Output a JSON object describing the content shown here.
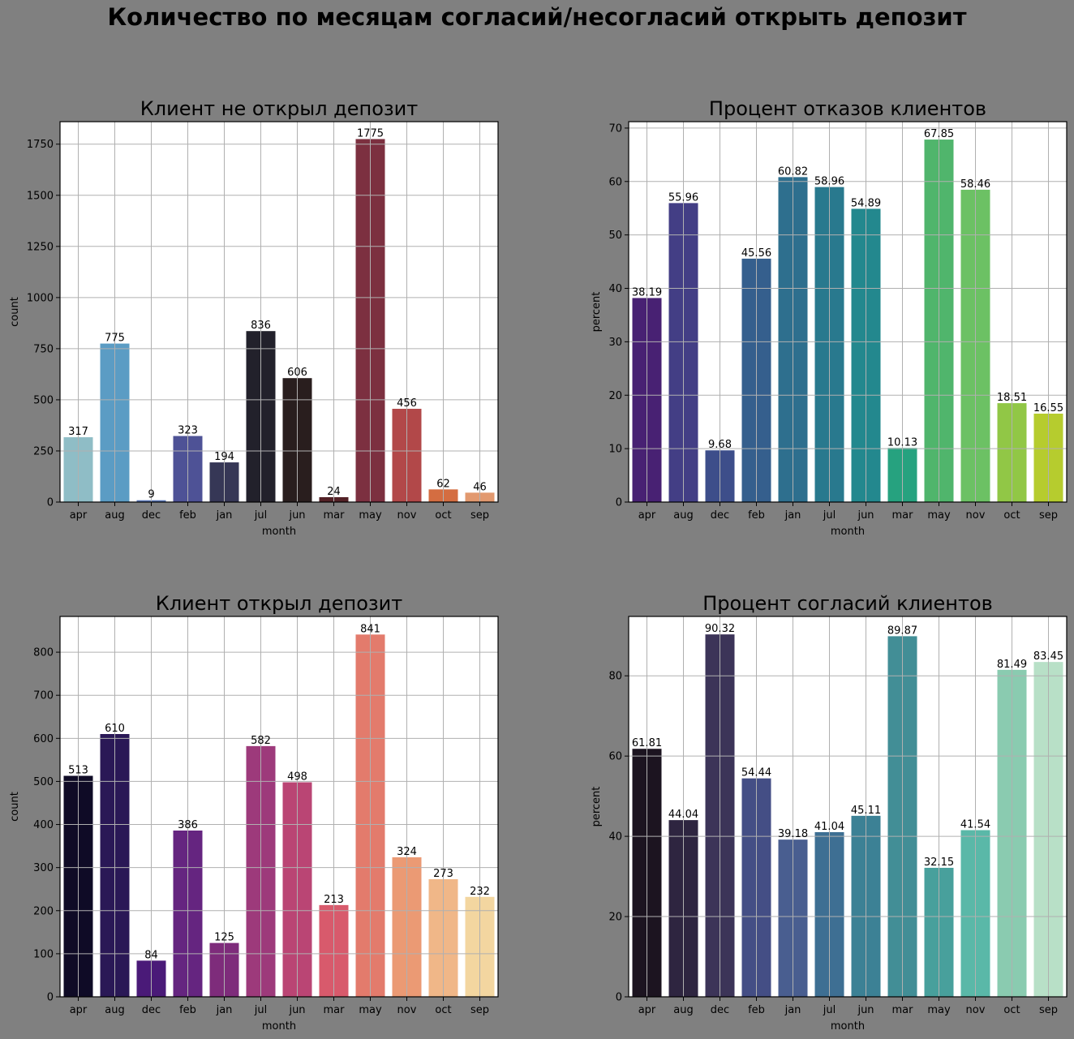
{
  "suptitle": "Количество по месяцам согласий/несогласий открыть депозит",
  "chart_data": [
    {
      "type": "bar",
      "title": "Клиент не открыл депозит",
      "xlabel": "month",
      "ylabel": "count",
      "ylim": [
        0,
        1860
      ],
      "yticks": [
        0,
        250,
        500,
        750,
        1000,
        1250,
        1500,
        1750
      ],
      "grid": true,
      "categories": [
        "apr",
        "aug",
        "dec",
        "feb",
        "jan",
        "jul",
        "jun",
        "mar",
        "may",
        "nov",
        "oct",
        "sep"
      ],
      "values": [
        317,
        775,
        9,
        323,
        194,
        836,
        606,
        24,
        1775,
        456,
        62,
        46
      ],
      "labels": [
        "317",
        "775",
        "9",
        "323",
        "194",
        "836",
        "606",
        "24",
        "1775",
        "456",
        "62",
        "46"
      ],
      "colors": [
        "#8fbdc6",
        "#5b9cc4",
        "#5a78b8",
        "#4e5296",
        "#363756",
        "#22212b",
        "#291e1e",
        "#532126",
        "#7c3040",
        "#b24849",
        "#d46d41",
        "#e2996f"
      ]
    },
    {
      "type": "bar",
      "title": "Процент отказов клиентов",
      "xlabel": "month",
      "ylabel": "percent",
      "ylim": [
        0,
        71.2
      ],
      "yticks": [
        0,
        10,
        20,
        30,
        40,
        50,
        60,
        70
      ],
      "grid": true,
      "categories": [
        "apr",
        "aug",
        "dec",
        "feb",
        "jan",
        "jul",
        "jun",
        "mar",
        "may",
        "nov",
        "oct",
        "sep"
      ],
      "values": [
        38.19,
        55.96,
        9.68,
        45.56,
        60.82,
        58.96,
        54.89,
        10.13,
        67.85,
        58.46,
        18.51,
        16.55
      ],
      "labels": [
        "38.19",
        "55.96",
        "9.68",
        "45.56",
        "60.82",
        "58.96",
        "54.89",
        "10.13",
        "67.85",
        "58.46",
        "18.51",
        "16.55"
      ],
      "colors": [
        "#482173",
        "#433e85",
        "#3d4e8a",
        "#355f8d",
        "#2e6f8e",
        "#29798e",
        "#23888e",
        "#26a27f",
        "#50b56c",
        "#6cc164",
        "#91c746",
        "#b6cc2e"
      ]
    },
    {
      "type": "bar",
      "title": "Клиент открыл депозит",
      "xlabel": "month",
      "ylabel": "count",
      "ylim": [
        0,
        883
      ],
      "yticks": [
        0,
        100,
        200,
        300,
        400,
        500,
        600,
        700,
        800
      ],
      "grid": true,
      "categories": [
        "apr",
        "aug",
        "dec",
        "feb",
        "jan",
        "jul",
        "jun",
        "mar",
        "may",
        "nov",
        "oct",
        "sep"
      ],
      "values": [
        513,
        610,
        84,
        386,
        125,
        582,
        498,
        213,
        841,
        324,
        273,
        232
      ],
      "labels": [
        "513",
        "610",
        "84",
        "386",
        "125",
        "582",
        "498",
        "213",
        "841",
        "324",
        "273",
        "232"
      ],
      "colors": [
        "#0f0b26",
        "#2a1856",
        "#4a1a78",
        "#652580",
        "#7e2c7b",
        "#9d3a7b",
        "#ba4574",
        "#d85a6c",
        "#e37b6c",
        "#eb9a74",
        "#f0b788",
        "#f3d6a0"
      ]
    },
    {
      "type": "bar",
      "title": "Процент согласий клиентов",
      "xlabel": "month",
      "ylabel": "percent",
      "ylim": [
        0,
        94.8
      ],
      "yticks": [
        0,
        20,
        40,
        60,
        80
      ],
      "grid": true,
      "categories": [
        "apr",
        "aug",
        "dec",
        "feb",
        "jan",
        "jul",
        "jun",
        "mar",
        "may",
        "nov",
        "oct",
        "sep"
      ],
      "values": [
        61.81,
        44.04,
        90.32,
        54.44,
        39.18,
        41.04,
        45.11,
        89.87,
        32.15,
        41.54,
        81.49,
        83.45
      ],
      "labels": [
        "61.81",
        "44.04",
        "90.32",
        "54.44",
        "39.18",
        "41.04",
        "45.11",
        "89.87",
        "32.15",
        "41.54",
        "81.49",
        "83.45"
      ],
      "colors": [
        "#1c1420",
        "#2e2540",
        "#3c3458",
        "#444e85",
        "#495e90",
        "#3e6f93",
        "#3c8195",
        "#428e96",
        "#48a09c",
        "#5ab8a8",
        "#8acbb0",
        "#b8e0c7"
      ]
    }
  ]
}
